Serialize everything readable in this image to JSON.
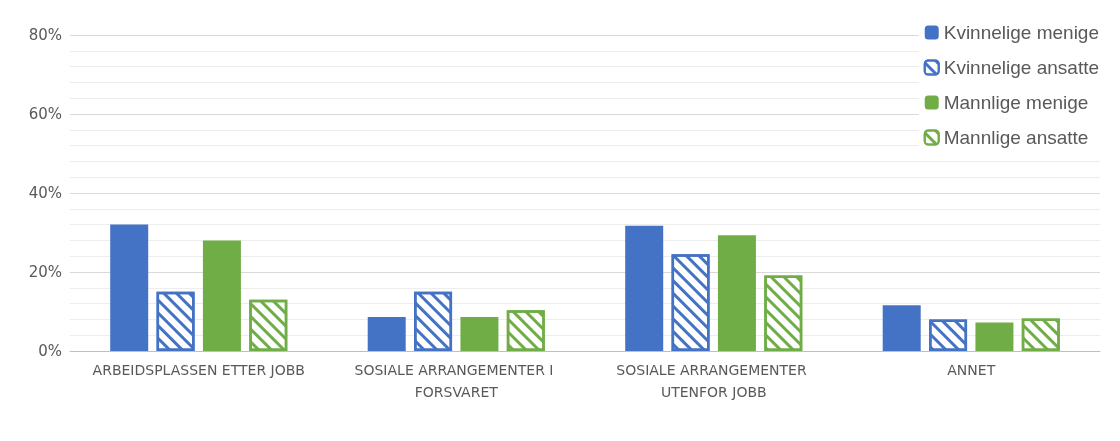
{
  "chart_data": {
    "type": "bar",
    "categories": [
      "ARBEIDSPLASSEN ETTER JOBB",
      "SOSIALE ARRANGEMENTER I FORSVARET",
      "SOSIALE ARRANGEMENTER UTENFOR JOBB",
      "ANNET"
    ],
    "series": [
      {
        "name": "Kvinnelige menige",
        "color": "#4472c4",
        "values": [
          32,
          8.6,
          31.7,
          11.6
        ]
      },
      {
        "name": "Kvinnelige ansatte",
        "color": "#4472c4",
        "values": [
          15,
          15,
          24.5,
          8
        ]
      },
      {
        "name": "Mannlige menige",
        "color": "#70ad47",
        "values": [
          28,
          8.6,
          29.3,
          7.2
        ]
      },
      {
        "name": "Mannlige ansatte",
        "color": "#70ad47",
        "values": [
          13,
          10.3,
          19.1,
          8.2
        ]
      }
    ],
    "ylim": [
      0,
      80
    ],
    "yticks": [
      {
        "value": 0,
        "label": "0%"
      },
      {
        "value": 20,
        "label": "20%"
      },
      {
        "value": 40,
        "label": "40%"
      },
      {
        "value": 60,
        "label": "60%"
      },
      {
        "value": 80,
        "label": "80%"
      }
    ],
    "grid": true,
    "legend": "top right"
  }
}
